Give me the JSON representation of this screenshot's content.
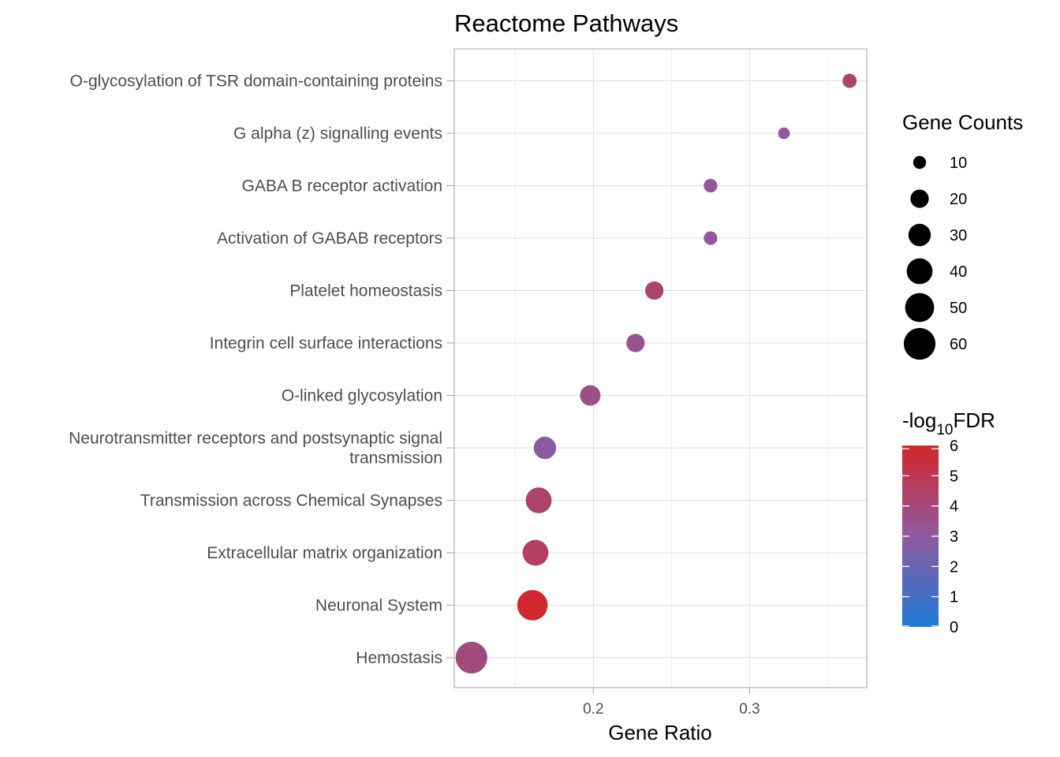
{
  "chart_data": {
    "type": "scatter",
    "title": "Reactome Pathways",
    "xlabel": "Gene Ratio",
    "ylabel": "",
    "xlim": [
      0.111,
      0.375
    ],
    "xticks": [
      0.2,
      0.3
    ],
    "xtick_labels": [
      "0.2",
      "0.3"
    ],
    "points": [
      {
        "label": "O-glycosylation of TSR domain-containing proteins",
        "label_lines": [
          "O-glycosylation of TSR domain-containing proteins"
        ],
        "x": 0.364,
        "count": 12,
        "neg_log10_fdr": 4.2
      },
      {
        "label": "G alpha (z) signalling events",
        "label_lines": [
          "G alpha (z) signalling events"
        ],
        "x": 0.322,
        "count": 8,
        "neg_log10_fdr": 3.1
      },
      {
        "label": "GABA B receptor activation",
        "label_lines": [
          "GABA B receptor activation"
        ],
        "x": 0.275,
        "count": 11,
        "neg_log10_fdr": 3.1
      },
      {
        "label": "Activation of GABAB receptors",
        "label_lines": [
          "Activation of GABAB receptors"
        ],
        "x": 0.275,
        "count": 11,
        "neg_log10_fdr": 3.1
      },
      {
        "label": "Platelet homeostasis",
        "label_lines": [
          "Platelet homeostasis"
        ],
        "x": 0.239,
        "count": 20,
        "neg_log10_fdr": 4.3
      },
      {
        "label": "Integrin cell surface interactions",
        "label_lines": [
          "Integrin cell surface interactions"
        ],
        "x": 0.227,
        "count": 20,
        "neg_log10_fdr": 3.4
      },
      {
        "label": "O-linked glycosylation",
        "label_lines": [
          "O-linked glycosylation"
        ],
        "x": 0.198,
        "count": 25,
        "neg_log10_fdr": 3.6
      },
      {
        "label": "Neurotransmitter receptors and postsynaptic signal transmission",
        "label_lines": [
          "Neurotransmitter receptors and postsynaptic signal",
          "transmission"
        ],
        "x": 0.169,
        "count": 30,
        "neg_log10_fdr": 2.9
      },
      {
        "label": "Transmission across Chemical Synapses",
        "label_lines": [
          "Transmission across Chemical Synapses"
        ],
        "x": 0.165,
        "count": 40,
        "neg_log10_fdr": 4.3
      },
      {
        "label": "Extracellular matrix organization",
        "label_lines": [
          "Extracellular matrix organization"
        ],
        "x": 0.163,
        "count": 40,
        "neg_log10_fdr": 4.6
      },
      {
        "label": "Neuronal System",
        "label_lines": [
          "Neuronal System"
        ],
        "x": 0.161,
        "count": 55,
        "neg_log10_fdr": 5.9
      },
      {
        "label": "Hemostasis",
        "label_lines": [
          "Hemostasis"
        ],
        "x": 0.122,
        "count": 60,
        "neg_log10_fdr": 3.9
      }
    ],
    "size_legend": {
      "title": "Gene Counts",
      "values": [
        10,
        20,
        30,
        40,
        50,
        60
      ],
      "labels": [
        "10",
        "20",
        "30",
        "40",
        "50",
        "60"
      ]
    },
    "color_legend": {
      "title_main": "-log",
      "title_sub": "10",
      "title_tail": "FDR",
      "min": 0,
      "max": 6,
      "ticks": [
        6,
        5,
        4,
        3,
        2,
        1,
        0
      ],
      "tick_labels": [
        "6",
        "5",
        "4",
        "3",
        "2",
        "1",
        "0"
      ],
      "low_color": "#1e7ad6",
      "mid_color": "#8f5a9f",
      "high_color": "#d2262a"
    }
  }
}
